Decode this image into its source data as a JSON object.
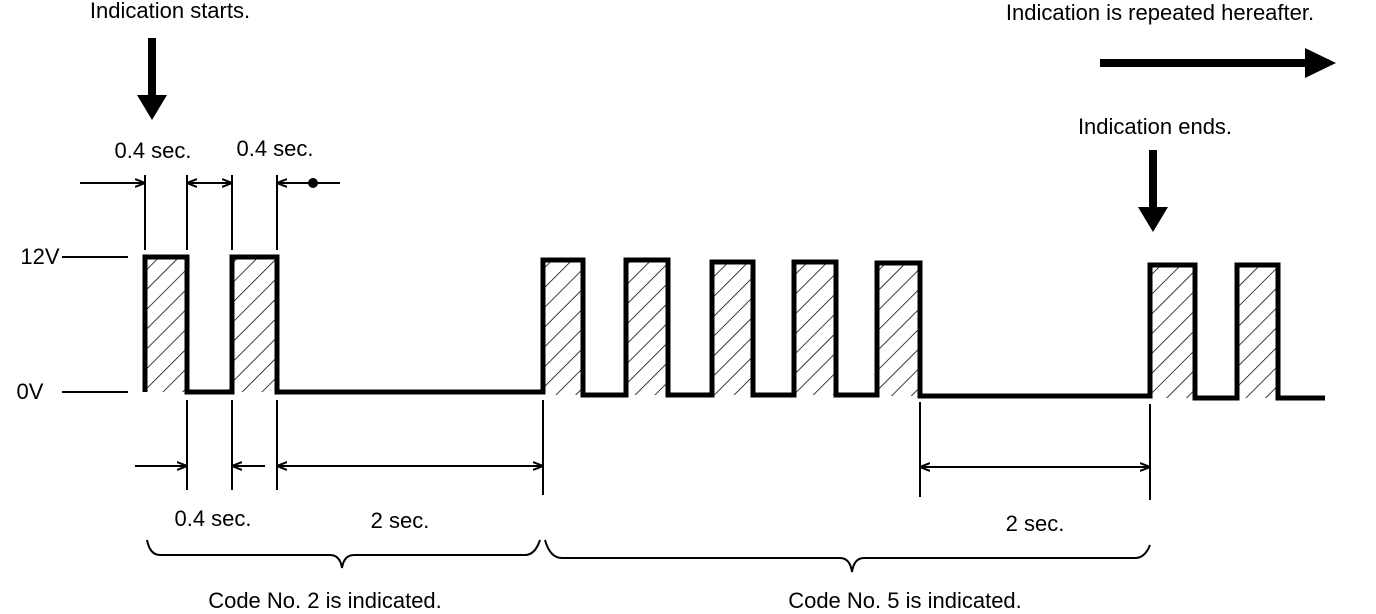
{
  "annotations": {
    "start": "Indication starts.",
    "repeat": "Indication is repeated hereafter.",
    "end": "Indication ends."
  },
  "levels": {
    "high": "12V",
    "low": "0V"
  },
  "durations": {
    "top_on": "0.4 sec.",
    "top_off": "0.4 sec.",
    "bottom_off": "0.4 sec.",
    "pause_1": "2 sec.",
    "pause_2": "2 sec."
  },
  "groups": {
    "code_2": "Code No. 2 is indicated.",
    "code_5": "Code No. 5 is indicated."
  }
}
